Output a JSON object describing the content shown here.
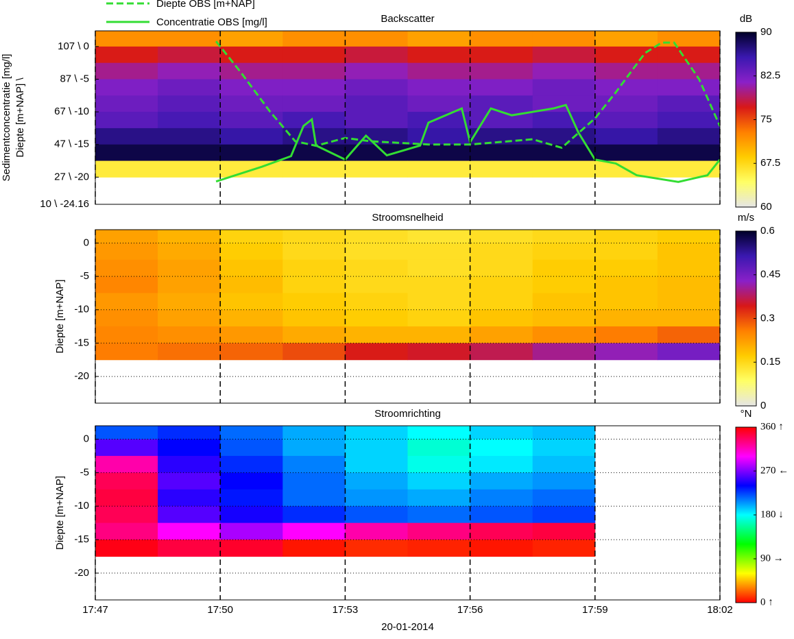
{
  "chart_data": [
    {
      "type": "heatmap",
      "title": "Backscatter",
      "ylabel": [
        "Sedimentconcentratie [mg/l]",
        "Diepte [m+NAP] \\"
      ],
      "ylim": [
        -24.16,
        2.4
      ],
      "y2lim": [
        10,
        116.2
      ],
      "yticks": [
        {
          "value": 0,
          "label": "107 \\ 0"
        },
        {
          "value": -5,
          "label": "87 \\ -5"
        },
        {
          "value": -10,
          "label": "67 \\ -10"
        },
        {
          "value": -15,
          "label": "47 \\ -15"
        },
        {
          "value": -20,
          "label": "27 \\ -20"
        },
        {
          "value": -24.16,
          "label": "10 \\ -24.16"
        }
      ],
      "x": [
        1067.75,
        1069.25,
        1070.75,
        1072.25,
        1073.75,
        1075.25,
        1076.75,
        1078.25,
        1079.75,
        1081.25
      ],
      "y": [
        1.25,
        -1.25,
        -3.75,
        -6.25,
        -8.75,
        -11.25,
        -13.75,
        -16.25,
        -18.75
      ],
      "values": [
        [
          72,
          72,
          71,
          72,
          72,
          71,
          72,
          72,
          71,
          72
        ],
        [
          77,
          78,
          77,
          77,
          78,
          77,
          77,
          78,
          77,
          77
        ],
        [
          80,
          81,
          80,
          80,
          81,
          80,
          80,
          81,
          80,
          80
        ],
        [
          82,
          83,
          82,
          82,
          83,
          82,
          82,
          83,
          82,
          82
        ],
        [
          83,
          84,
          83,
          83,
          84,
          83,
          84,
          83,
          83,
          84
        ],
        [
          84,
          85,
          84,
          85,
          84,
          85,
          84,
          85,
          84,
          85
        ],
        [
          87,
          87,
          86,
          87,
          87,
          86,
          87,
          87,
          86,
          87
        ],
        [
          89,
          89,
          89,
          89,
          89,
          89,
          89,
          89,
          89,
          89
        ],
        [
          66,
          66,
          66,
          66,
          66,
          66,
          66,
          66,
          66,
          66
        ]
      ],
      "colorbar_unit": "dB",
      "clim": [
        60,
        90
      ],
      "cticks": [
        60,
        67.5,
        75,
        82.5,
        90
      ],
      "colormap": [
        "#e6e6e6",
        "#ffff66",
        "#ffcc00",
        "#ff8000",
        "#d81818",
        "#8a20c8",
        "#3a18b0",
        "#000028"
      ],
      "series": [
        {
          "name": "Diepte OBS [m+NAP]",
          "color": "#33dd33",
          "style": "dashed",
          "x": [
            1069.9,
            1070.5,
            1071.2,
            1071.8,
            1072.3,
            1073,
            1073.6,
            1075,
            1076,
            1077.5,
            1078.2,
            1079,
            1079.5,
            1080.2,
            1080.6,
            1080.9,
            1081.5,
            1082
          ],
          "values": [
            0.8,
            -4,
            -10,
            -14.5,
            -15.2,
            -14,
            -14.5,
            -15,
            -15,
            -14.2,
            -15.5,
            -11,
            -7,
            -1,
            0.6,
            0.6,
            -5,
            -12.2
          ]
        },
        {
          "name": "Concentratie OBS [mg/l]",
          "color": "#33dd33",
          "style": "solid",
          "axis": "y2",
          "x": [
            1069.9,
            1071,
            1071.7,
            1072,
            1072.2,
            1072.3,
            1073,
            1073.5,
            1074,
            1074.8,
            1075,
            1075.8,
            1076,
            1076.5,
            1077,
            1078,
            1078.3,
            1078.6,
            1079,
            1079.5,
            1080,
            1081,
            1081.7,
            1082
          ],
          "values": [
            24,
            33,
            39.5,
            58,
            62,
            46,
            37.4,
            52,
            40,
            46,
            60,
            68.7,
            48,
            68.7,
            64.5,
            68.7,
            70.8,
            54,
            37.4,
            35,
            27.8,
            23.7,
            27.8,
            37.4
          ]
        }
      ]
    },
    {
      "type": "heatmap",
      "title": "Stroomsnelheid",
      "ylabel": [
        "Diepte [m+NAP]"
      ],
      "ylim": [
        -24,
        2
      ],
      "yticks": [
        0,
        -5,
        -10,
        -15,
        -20
      ],
      "ygrid": true,
      "x": [
        1067.75,
        1069.25,
        1070.75,
        1072.25,
        1073.75,
        1075.25,
        1076.75,
        1078.25,
        1079.75,
        1081.25
      ],
      "y": [
        1.25,
        -1.25,
        -3.75,
        -6.25,
        -8.75,
        -11.25,
        -13.75,
        -16.25
      ],
      "values": [
        [
          0.22,
          0.2,
          0.16,
          0.15,
          0.14,
          0.13,
          0.14,
          0.15,
          0.16,
          0.17
        ],
        [
          0.23,
          0.21,
          0.17,
          0.15,
          0.14,
          0.14,
          0.15,
          0.16,
          0.16,
          0.18
        ],
        [
          0.24,
          0.22,
          0.18,
          0.16,
          0.15,
          0.14,
          0.15,
          0.17,
          0.17,
          0.18
        ],
        [
          0.25,
          0.22,
          0.19,
          0.16,
          0.15,
          0.15,
          0.16,
          0.17,
          0.18,
          0.19
        ],
        [
          0.23,
          0.21,
          0.18,
          0.17,
          0.16,
          0.15,
          0.16,
          0.18,
          0.18,
          0.19
        ],
        [
          0.24,
          0.22,
          0.2,
          0.18,
          0.17,
          0.16,
          0.18,
          0.19,
          0.2,
          0.2
        ],
        [
          0.25,
          0.24,
          0.23,
          0.21,
          0.2,
          0.2,
          0.22,
          0.24,
          0.26,
          0.28
        ],
        [
          0.26,
          0.27,
          0.28,
          0.3,
          0.34,
          0.35,
          0.37,
          0.4,
          0.42,
          0.45
        ]
      ],
      "colorbar_unit": "m/s",
      "clim": [
        0,
        0.6
      ],
      "cticks": [
        0,
        0.15,
        0.3,
        0.45,
        0.6
      ],
      "colormap": [
        "#e6e6e6",
        "#ffff66",
        "#ffcc00",
        "#ff8000",
        "#d81818",
        "#8a20c8",
        "#3a18b0",
        "#000028"
      ]
    },
    {
      "type": "heatmap",
      "title": "Stroomrichting",
      "ylabel": [
        "Diepte [m+NAP]"
      ],
      "xlabel": "20-01-2014",
      "ylim": [
        -24,
        2
      ],
      "yticks": [
        0,
        -5,
        -10,
        -15,
        -20
      ],
      "ygrid": true,
      "xlim": [
        1067,
        1082
      ],
      "xgrid": true,
      "xticks": [
        {
          "value": 1067,
          "label": "17:47"
        },
        {
          "value": 1070,
          "label": "17:50"
        },
        {
          "value": 1073,
          "label": "17:53"
        },
        {
          "value": 1076,
          "label": "17:56"
        },
        {
          "value": 1079,
          "label": "17:59"
        },
        {
          "value": 1082,
          "label": "18:02"
        }
      ],
      "x": [
        1067.75,
        1069.25,
        1070.75,
        1072.25,
        1073.75,
        1075.25,
        1076.75,
        1078.25,
        1079.75,
        1081.25
      ],
      "y": [
        1.25,
        -1.25,
        -3.75,
        -6.25,
        -8.75,
        -11.25,
        -13.75,
        -16.25
      ],
      "values": [
        [
          220,
          230,
          215,
          200,
          190,
          180,
          190,
          195,
          null,
          null
        ],
        [
          260,
          240,
          220,
          200,
          190,
          170,
          180,
          190,
          null,
          null
        ],
        [
          320,
          250,
          230,
          210,
          190,
          175,
          185,
          195,
          null,
          null
        ],
        [
          340,
          260,
          240,
          215,
          200,
          190,
          200,
          205,
          null,
          null
        ],
        [
          345,
          250,
          235,
          215,
          205,
          200,
          210,
          215,
          null,
          null
        ],
        [
          340,
          260,
          245,
          230,
          220,
          215,
          220,
          225,
          null,
          null
        ],
        [
          330,
          300,
          280,
          300,
          320,
          330,
          340,
          345,
          null,
          null
        ],
        [
          355,
          345,
          350,
          5,
          10,
          8,
          5,
          8,
          null,
          null
        ]
      ],
      "colorbar_unit": "°N",
      "clim": [
        0,
        360
      ],
      "cticks": [
        {
          "value": 0,
          "label": "0 ↑"
        },
        {
          "value": 90,
          "label": "90 →"
        },
        {
          "value": 180,
          "label": "180 ↓"
        },
        {
          "value": 270,
          "label": "270 ←"
        },
        {
          "value": 360,
          "label": "360 ↑"
        }
      ],
      "colormap": [
        "#ff0000",
        "#ffff00",
        "#00ff00",
        "#00ffff",
        "#0000ff",
        "#ff00ff",
        "#ff0000"
      ]
    }
  ]
}
